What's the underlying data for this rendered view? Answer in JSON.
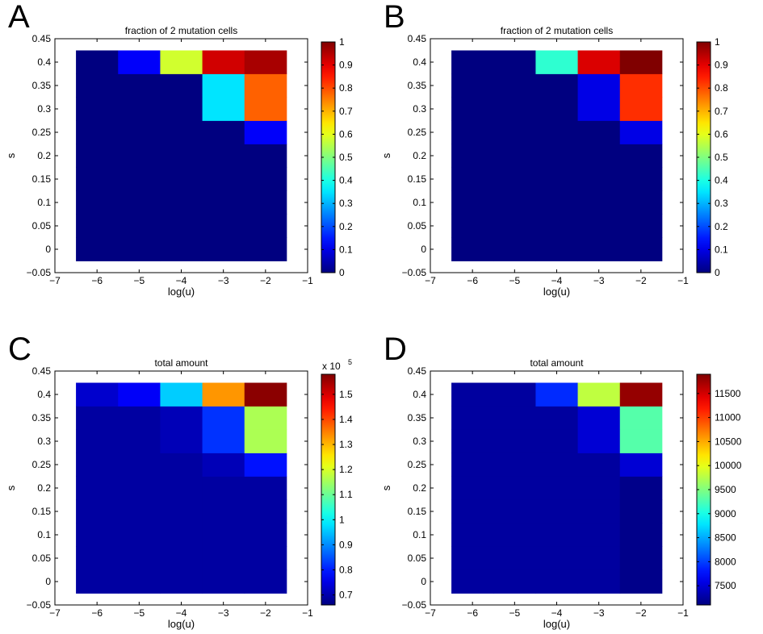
{
  "chart_data": [
    {
      "panel": "A",
      "type": "heatmap",
      "title": "fraction of 2 mutation cells",
      "xlabel": "log(u)",
      "ylabel": "s",
      "x": [
        -6,
        -5,
        -4,
        -3,
        -2
      ],
      "y": [
        0,
        0.05,
        0.1,
        0.15,
        0.2,
        0.25,
        0.3,
        0.35,
        0.4
      ],
      "xlim": [
        -7,
        -1
      ],
      "ylim": [
        -0.05,
        0.45
      ],
      "x_ticks": [
        "−7",
        "−6",
        "−5",
        "−4",
        "−3",
        "−2",
        "−1"
      ],
      "y_ticks": [
        "−0.05",
        "0",
        "0.05",
        "0.1",
        "0.15",
        "0.2",
        "0.25",
        "0.3",
        "0.35",
        "0.4",
        "0.45"
      ],
      "values": [
        [
          0,
          0,
          0,
          0,
          0
        ],
        [
          0,
          0,
          0,
          0,
          0
        ],
        [
          0,
          0,
          0,
          0,
          0
        ],
        [
          0,
          0,
          0,
          0,
          0
        ],
        [
          0,
          0,
          0,
          0,
          0
        ],
        [
          0,
          0,
          0,
          0,
          0.12
        ],
        [
          0,
          0,
          0,
          0.35,
          0.78
        ],
        [
          0,
          0,
          0,
          0.35,
          0.78
        ],
        [
          0,
          0.12,
          0.58,
          0.92,
          0.96
        ]
      ],
      "colorbar": {
        "min": 0,
        "max": 1,
        "ticks": [
          "0",
          "0.1",
          "0.2",
          "0.3",
          "0.4",
          "0.5",
          "0.6",
          "0.7",
          "0.8",
          "0.9",
          "1"
        ],
        "tick_values": [
          0,
          0.1,
          0.2,
          0.3,
          0.4,
          0.5,
          0.6,
          0.7,
          0.8,
          0.9,
          1
        ],
        "exponent": ""
      }
    },
    {
      "panel": "B",
      "type": "heatmap",
      "title": "fraction of 2 mutation cells",
      "xlabel": "log(u)",
      "ylabel": "s",
      "x": [
        -6,
        -5,
        -4,
        -3,
        -2
      ],
      "y": [
        0,
        0.05,
        0.1,
        0.15,
        0.2,
        0.25,
        0.3,
        0.35,
        0.4
      ],
      "xlim": [
        -7,
        -1
      ],
      "ylim": [
        -0.05,
        0.45
      ],
      "x_ticks": [
        "−7",
        "−6",
        "−5",
        "−4",
        "−3",
        "−2",
        "−1"
      ],
      "y_ticks": [
        "−0.05",
        "0",
        "0.05",
        "0.1",
        "0.15",
        "0.2",
        "0.25",
        "0.3",
        "0.35",
        "0.4",
        "0.45"
      ],
      "values": [
        [
          0,
          0,
          0,
          0,
          0
        ],
        [
          0,
          0,
          0,
          0,
          0
        ],
        [
          0,
          0,
          0,
          0,
          0
        ],
        [
          0,
          0,
          0,
          0,
          0
        ],
        [
          0,
          0,
          0,
          0,
          0
        ],
        [
          0,
          0,
          0,
          0,
          0.1
        ],
        [
          0,
          0,
          0,
          0.1,
          0.83
        ],
        [
          0,
          0,
          0,
          0.1,
          0.83
        ],
        [
          0,
          0,
          0.42,
          0.91,
          1.0
        ]
      ],
      "colorbar": {
        "min": 0,
        "max": 1,
        "ticks": [
          "0",
          "0.1",
          "0.2",
          "0.3",
          "0.4",
          "0.5",
          "0.6",
          "0.7",
          "0.8",
          "0.9",
          "1"
        ],
        "tick_values": [
          0,
          0.1,
          0.2,
          0.3,
          0.4,
          0.5,
          0.6,
          0.7,
          0.8,
          0.9,
          1
        ],
        "exponent": ""
      }
    },
    {
      "panel": "C",
      "type": "heatmap",
      "title": "total amount",
      "xlabel": "log(u)",
      "ylabel": "s",
      "x": [
        -6,
        -5,
        -4,
        -3,
        -2
      ],
      "y": [
        0,
        0.05,
        0.1,
        0.15,
        0.2,
        0.25,
        0.3,
        0.35,
        0.4
      ],
      "xlim": [
        -7,
        -1
      ],
      "ylim": [
        -0.05,
        0.45
      ],
      "x_ticks": [
        "−7",
        "−6",
        "−5",
        "−4",
        "−3",
        "−2",
        "−1"
      ],
      "y_ticks": [
        "−0.05",
        "0",
        "0.05",
        "0.1",
        "0.15",
        "0.2",
        "0.25",
        "0.3",
        "0.35",
        "0.4",
        "0.45"
      ],
      "values": [
        [
          0.69,
          0.69,
          0.69,
          0.69,
          0.69
        ],
        [
          0.69,
          0.69,
          0.69,
          0.69,
          0.69
        ],
        [
          0.69,
          0.69,
          0.69,
          0.69,
          0.69
        ],
        [
          0.69,
          0.69,
          0.69,
          0.69,
          0.69
        ],
        [
          0.69,
          0.69,
          0.69,
          0.69,
          0.69
        ],
        [
          0.69,
          0.69,
          0.69,
          0.71,
          0.79
        ],
        [
          0.69,
          0.69,
          0.71,
          0.82,
          1.16
        ],
        [
          0.69,
          0.69,
          0.71,
          0.82,
          1.16
        ],
        [
          0.73,
          0.77,
          0.96,
          1.33,
          1.57
        ]
      ],
      "colorbar": {
        "min": 0.66,
        "max": 1.58,
        "ticks": [
          "0.7",
          "0.8",
          "0.9",
          "1",
          "1.1",
          "1.2",
          "1.3",
          "1.4",
          "1.5"
        ],
        "tick_values": [
          0.7,
          0.8,
          0.9,
          1,
          1.1,
          1.2,
          1.3,
          1.4,
          1.5
        ],
        "exponent_base": "x 10",
        "exponent_power": "5"
      }
    },
    {
      "panel": "D",
      "type": "heatmap",
      "title": "total amount",
      "xlabel": "log(u)",
      "ylabel": "s",
      "x": [
        -6,
        -5,
        -4,
        -3,
        -2
      ],
      "y": [
        0,
        0.05,
        0.1,
        0.15,
        0.2,
        0.25,
        0.3,
        0.35,
        0.4
      ],
      "xlim": [
        -7,
        -1
      ],
      "ylim": [
        -0.05,
        0.45
      ],
      "x_ticks": [
        "−7",
        "−6",
        "−5",
        "−4",
        "−3",
        "−2",
        "−1"
      ],
      "y_ticks": [
        "−0.05",
        "0",
        "0.05",
        "0.1",
        "0.15",
        "0.2",
        "0.25",
        "0.3",
        "0.35",
        "0.4",
        "0.45"
      ],
      "values": [
        [
          7250,
          7250,
          7250,
          7250,
          7150
        ],
        [
          7250,
          7250,
          7250,
          7250,
          7150
        ],
        [
          7250,
          7250,
          7250,
          7250,
          7150
        ],
        [
          7250,
          7250,
          7250,
          7250,
          7150
        ],
        [
          7250,
          7250,
          7250,
          7250,
          7150
        ],
        [
          7250,
          7250,
          7250,
          7250,
          7500
        ],
        [
          7250,
          7250,
          7250,
          7500,
          9300
        ],
        [
          7250,
          7250,
          7250,
          7500,
          9300
        ],
        [
          7250,
          7250,
          7900,
          9800,
          11800
        ]
      ],
      "colorbar": {
        "min": 7100,
        "max": 11900,
        "ticks": [
          "7500",
          "8000",
          "8500",
          "9000",
          "9500",
          "10000",
          "10500",
          "11000",
          "11500"
        ],
        "tick_values": [
          7500,
          8000,
          8500,
          9000,
          9500,
          10000,
          10500,
          11000,
          11500
        ],
        "exponent": ""
      }
    }
  ]
}
